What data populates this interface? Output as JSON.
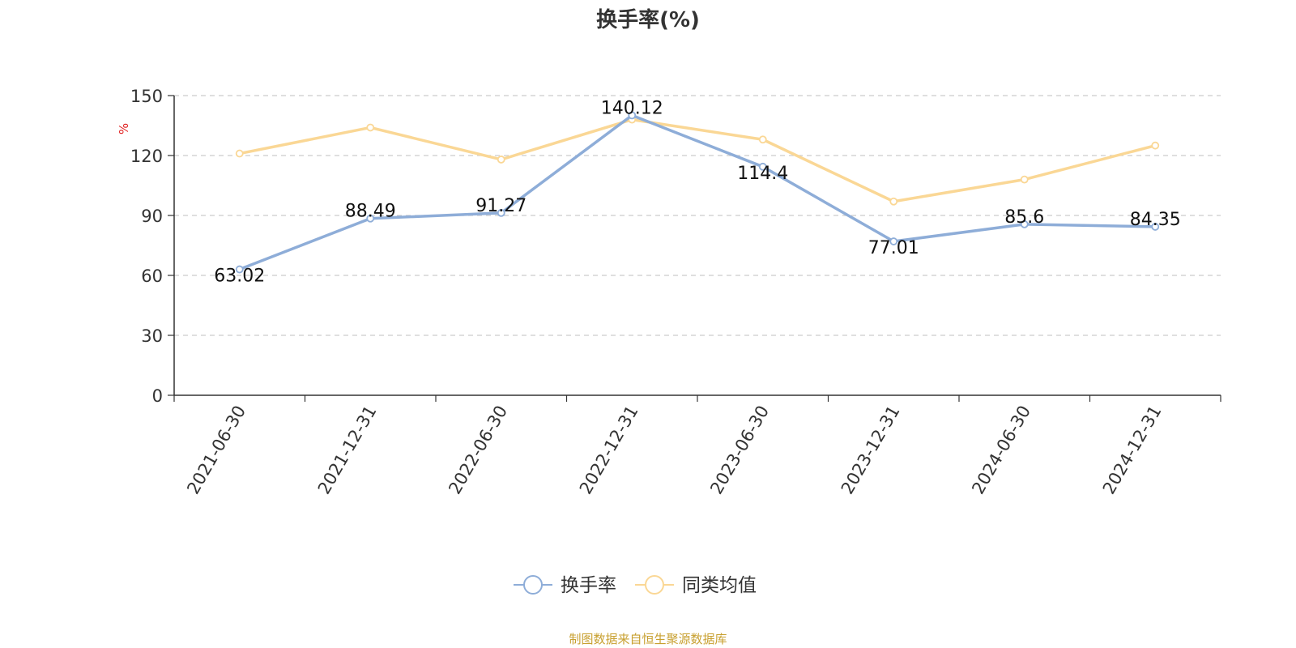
{
  "chart_data": {
    "type": "line",
    "title": "换手率(%)",
    "ylabel": "%",
    "xlabel": "",
    "ylim": [
      0,
      150
    ],
    "yticks": [
      0,
      30,
      60,
      90,
      120,
      150
    ],
    "grid": true,
    "legend_position": "bottom-center",
    "categories": [
      "2021-06-30",
      "2021-12-31",
      "2022-06-30",
      "2022-12-31",
      "2023-06-30",
      "2023-12-31",
      "2024-06-30",
      "2024-12-31"
    ],
    "series": [
      {
        "name": "换手率",
        "color": "#8eadd8",
        "values": [
          63.02,
          88.49,
          91.27,
          140.12,
          114.4,
          77.01,
          85.6,
          84.35
        ],
        "labels": [
          "63.02",
          "88.49",
          "91.27",
          "140.12",
          "114.4",
          "77.01",
          "85.6",
          "84.35"
        ]
      },
      {
        "name": "同类均值",
        "color": "#fad795",
        "values": [
          121,
          134,
          118,
          138,
          128,
          97,
          108,
          125
        ]
      }
    ],
    "source": "制图数据来自恒生聚源数据库"
  }
}
